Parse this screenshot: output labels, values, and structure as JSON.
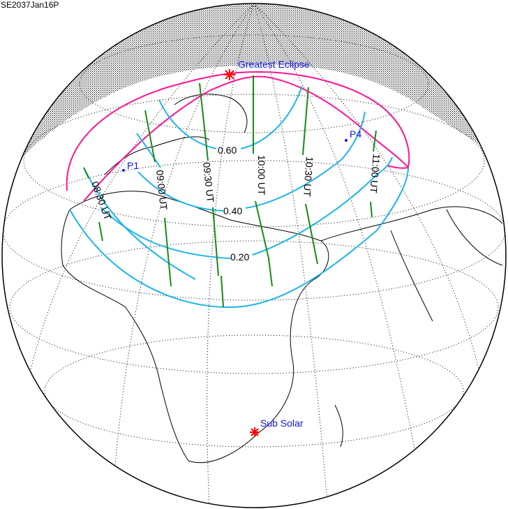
{
  "title": "SE2037Jan16P",
  "markers": {
    "greatest_eclipse": "Greatest Eclipse",
    "sub_solar": "Sub Solar",
    "p1": "P1",
    "p4": "P4"
  },
  "magnitude_labels": [
    "0.60",
    "0.40",
    "0.20"
  ],
  "time_labels": [
    "08:30 UT",
    "09:00 UT",
    "09:30 UT",
    "10:00 UT",
    "10:30 UT",
    "11:00 UT"
  ],
  "colors": {
    "penumbra_limits": "#ff1493",
    "magnitude_curves": "#1eb4e6",
    "time_lines": "#168c16",
    "markers": "#ff0000",
    "label_text": "#1414e6"
  }
}
